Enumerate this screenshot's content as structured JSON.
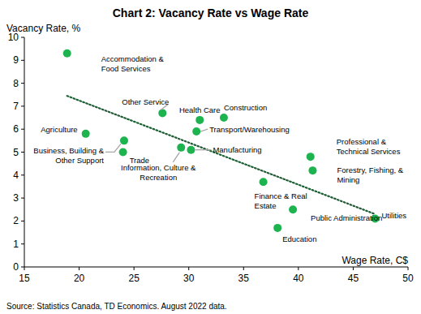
{
  "chart_data": {
    "type": "scatter",
    "title": "Chart 2: Vacancy Rate vs Wage Rate",
    "y_label": "Vacancy Rate, %",
    "x_label": "Wage Rate, C$",
    "source": "Source:  Statistics Canada, TD Economics.  August 2022 data.",
    "xlim": [
      15,
      50
    ],
    "xticks": [
      15,
      20,
      25,
      30,
      35,
      40,
      45,
      50
    ],
    "ylim": [
      0,
      10
    ],
    "yticks": [
      0,
      1,
      2,
      3,
      4,
      5,
      6,
      7,
      8,
      9,
      10
    ],
    "grid": false,
    "series": [
      {
        "type": "scatter",
        "marker": "circle",
        "color": "#1db34f",
        "labels": [
          "Accommodation &\nFood Services",
          "Agriculture",
          "Business, Building &\nOther Support",
          "Trade",
          "Other Service",
          "Health Care",
          "Construction",
          "Transport/Warehousing",
          "Manufacturing",
          "Information, Culture &\nRecreation",
          "Finance & Real\nEstate",
          "Professional &\nTechnical Services",
          "Forestry, Fishing, &\nMining",
          "Public Administration",
          "Education",
          "Utilities"
        ],
        "x": [
          18.9,
          20.6,
          24.1,
          24.0,
          27.6,
          31.0,
          33.2,
          30.7,
          30.2,
          29.3,
          36.8,
          41.1,
          41.3,
          39.5,
          38.1,
          47.0
        ],
        "values": [
          9.3,
          5.8,
          5.5,
          5.0,
          6.7,
          6.4,
          6.5,
          5.9,
          5.1,
          5.2,
          3.7,
          4.8,
          4.2,
          2.5,
          1.7,
          2.1
        ]
      },
      {
        "type": "line",
        "line_style": "dotted",
        "color": "#1e5e34",
        "x": [
          18.9,
          47.0
        ],
        "values": [
          7.45,
          2.3
        ]
      }
    ]
  }
}
